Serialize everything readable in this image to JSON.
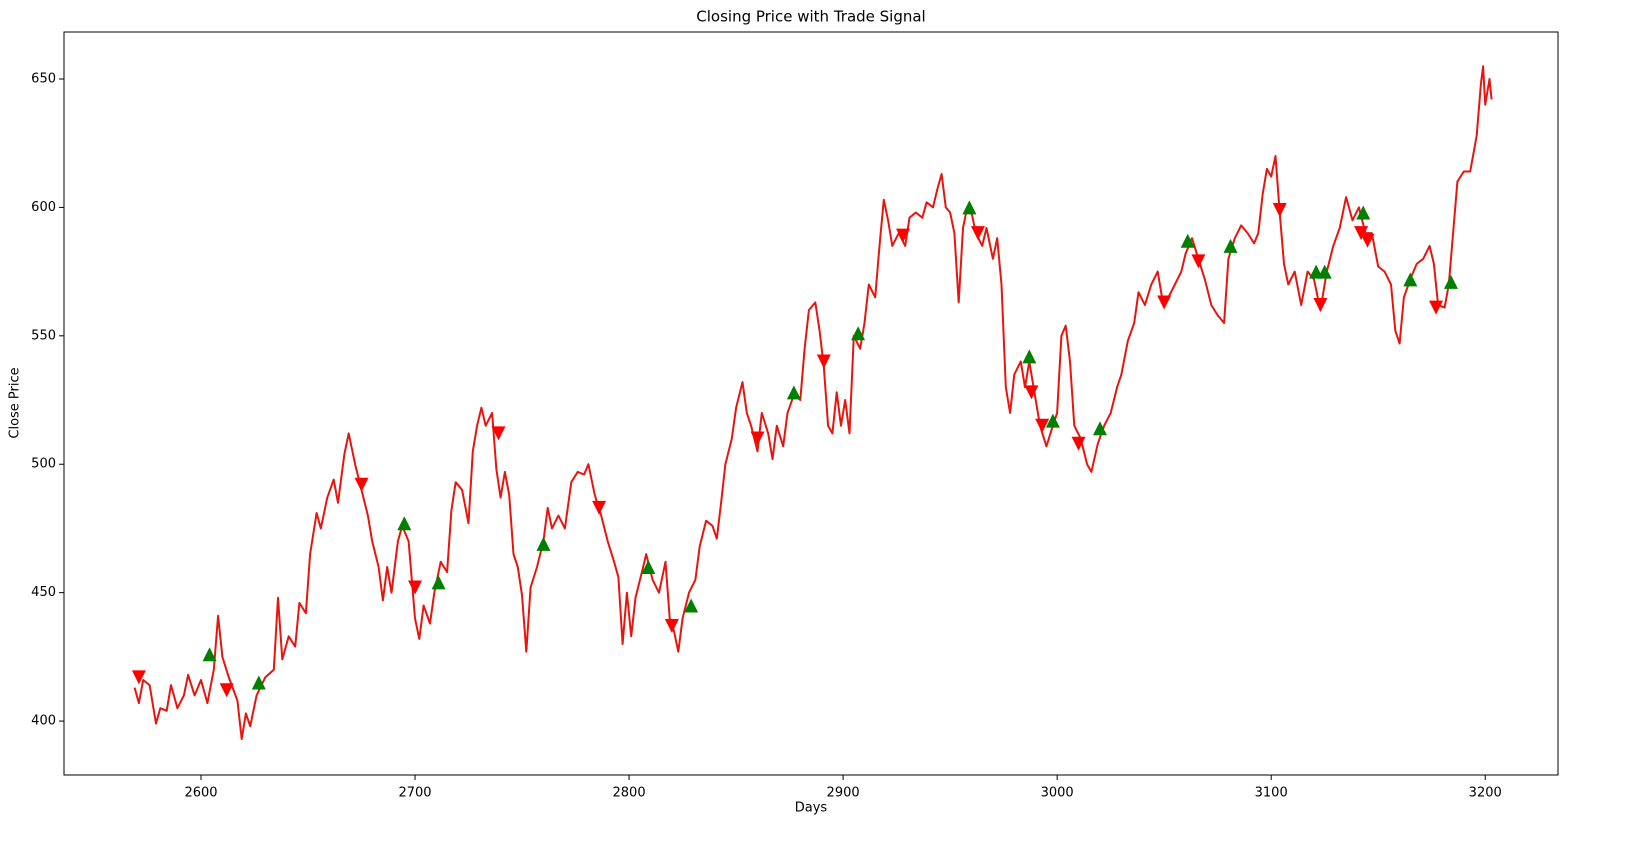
{
  "chart_data": {
    "type": "line",
    "title": "Closing Price with Trade Signal",
    "x_label": "Days",
    "y_label": "Close Price",
    "xlim": [
      2536,
      3234
    ],
    "xticks": [
      2600,
      2700,
      2800,
      2900,
      3000,
      3100,
      3200
    ],
    "ylim": [
      379,
      668.3
    ],
    "yticks": [
      400,
      450,
      500,
      550,
      600,
      650
    ],
    "grid": false,
    "series": [
      {
        "type": "line",
        "color": "#e8150f",
        "x": [
          2569,
          2571,
          2573,
          2576,
          2579,
          2581,
          2584,
          2586,
          2589,
          2592,
          2594,
          2597,
          2600,
          2603,
          2606,
          2608,
          2610,
          2613,
          2617,
          2619,
          2621,
          2623,
          2626,
          2630,
          2634,
          2636,
          2638,
          2641,
          2644,
          2646,
          2649,
          2651,
          2654,
          2656,
          2659,
          2662,
          2664,
          2667,
          2669,
          2672,
          2675,
          2678,
          2680,
          2683,
          2685,
          2687,
          2689,
          2692,
          2694,
          2697,
          2700,
          2702,
          2704,
          2707,
          2709,
          2712,
          2715,
          2717,
          2719,
          2722,
          2725,
          2727,
          2729,
          2731,
          2733,
          2736,
          2738,
          2740,
          2742,
          2744,
          2746,
          2748,
          2750,
          2752,
          2754,
          2757,
          2760,
          2762,
          2764,
          2767,
          2770,
          2773,
          2776,
          2779,
          2781,
          2784,
          2787,
          2790,
          2793,
          2795,
          2797,
          2799,
          2801,
          2803,
          2806,
          2808,
          2811,
          2814,
          2817,
          2819,
          2821,
          2823,
          2825,
          2828,
          2831,
          2833,
          2836,
          2839,
          2841,
          2843,
          2845,
          2848,
          2850,
          2853,
          2855,
          2857,
          2860,
          2862,
          2865,
          2867,
          2869,
          2872,
          2874,
          2877,
          2880,
          2882,
          2884,
          2887,
          2889,
          2891,
          2893,
          2895,
          2897,
          2899,
          2901,
          2903,
          2905,
          2908,
          2910,
          2912,
          2915,
          2917,
          2919,
          2921,
          2923,
          2926,
          2929,
          2931,
          2934,
          2937,
          2939,
          2942,
          2944,
          2946,
          2948,
          2950,
          2952,
          2954,
          2956,
          2958,
          2960,
          2962,
          2965,
          2967,
          2970,
          2972,
          2974,
          2976,
          2978,
          2980,
          2983,
          2985,
          2987,
          2990,
          2992,
          2995,
          2998,
          3000,
          3002,
          3004,
          3006,
          3008,
          3011,
          3014,
          3016,
          3019,
          3022,
          3025,
          3028,
          3030,
          3033,
          3036,
          3038,
          3041,
          3044,
          3047,
          3049,
          3052,
          3055,
          3058,
          3060,
          3063,
          3066,
          3069,
          3072,
          3075,
          3078,
          3080,
          3083,
          3086,
          3089,
          3092,
          3094,
          3096,
          3098,
          3100,
          3102,
          3104,
          3106,
          3108,
          3111,
          3114,
          3117,
          3120,
          3123,
          3126,
          3129,
          3132,
          3135,
          3138,
          3141,
          3144,
          3147,
          3150,
          3153,
          3156,
          3158,
          3160,
          3162,
          3165,
          3168,
          3171,
          3174,
          3176,
          3178,
          3181,
          3183,
          3185,
          3187,
          3190,
          3193,
          3196,
          3198,
          3199,
          3200,
          3202,
          3203
        ],
        "values": [
          413,
          407,
          416,
          414,
          399,
          405,
          404,
          414,
          405,
          410,
          418,
          410,
          416,
          407,
          420,
          441,
          425,
          417,
          408,
          393,
          403,
          398,
          410,
          417,
          420,
          448,
          424,
          433,
          429,
          446,
          442,
          465,
          481,
          475,
          487,
          494,
          485,
          504,
          512,
          500,
          490,
          480,
          470,
          460,
          447,
          460,
          450,
          470,
          476,
          470,
          440,
          432,
          445,
          438,
          450,
          462,
          458,
          482,
          493,
          490,
          477,
          505,
          515,
          522,
          515,
          520,
          498,
          487,
          497,
          488,
          465,
          460,
          449,
          427,
          452,
          460,
          470,
          483,
          475,
          480,
          475,
          493,
          497,
          496,
          500,
          488,
          480,
          470,
          462,
          456,
          430,
          450,
          433,
          448,
          458,
          465,
          455,
          450,
          462,
          440,
          435,
          427,
          440,
          450,
          455,
          468,
          478,
          476,
          471,
          485,
          500,
          510,
          522,
          532,
          520,
          515,
          505,
          520,
          512,
          502,
          515,
          507,
          520,
          527,
          525,
          545,
          560,
          563,
          552,
          538,
          515,
          512,
          528,
          515,
          525,
          512,
          550,
          545,
          555,
          570,
          565,
          585,
          603,
          595,
          585,
          590,
          585,
          596,
          598,
          596,
          602,
          600,
          607,
          613,
          600,
          598,
          590,
          563,
          592,
          600,
          598,
          590,
          585,
          592,
          580,
          588,
          570,
          530,
          520,
          535,
          540,
          530,
          540,
          525,
          515,
          507,
          515,
          520,
          550,
          554,
          540,
          515,
          510,
          500,
          497,
          508,
          515,
          520,
          530,
          535,
          548,
          555,
          567,
          562,
          570,
          575,
          565,
          565,
          570,
          575,
          582,
          588,
          580,
          572,
          562,
          558,
          555,
          580,
          588,
          593,
          590,
          586,
          590,
          605,
          615,
          612,
          620,
          598,
          578,
          570,
          575,
          562,
          575,
          572,
          560,
          575,
          585,
          592,
          604,
          595,
          600,
          590,
          590,
          577,
          575,
          570,
          552,
          547,
          565,
          572,
          578,
          580,
          585,
          578,
          562,
          561,
          570,
          590,
          610,
          614,
          614,
          628,
          648,
          655,
          640,
          650,
          642
        ]
      },
      {
        "type": "scatter",
        "marker": "^",
        "color": "green",
        "x": [
          2604,
          2627,
          2695,
          2711,
          2760,
          2809,
          2829,
          2877,
          2907,
          2959,
          2987,
          2998,
          3020,
          3061,
          3081,
          3121,
          3125,
          3143,
          3165,
          3184
        ],
        "values": [
          426,
          415,
          477,
          454,
          469,
          460,
          445,
          528,
          551,
          600,
          542,
          517,
          514,
          587,
          585,
          575,
          575,
          598,
          572,
          571
        ]
      },
      {
        "type": "scatter",
        "marker": "v",
        "color": "red",
        "x": [
          2571,
          2612,
          2675,
          2700,
          2739,
          2786,
          2820,
          2860,
          2891,
          2928,
          2963,
          2988,
          2993,
          3010,
          3050,
          3066,
          3104,
          3123,
          3142,
          3145,
          3177
        ],
        "values": [
          417,
          412,
          492,
          452,
          512,
          483,
          437,
          510,
          540,
          589,
          590,
          528,
          515,
          508,
          563,
          579,
          599,
          562,
          590,
          587,
          561
        ]
      }
    ]
  }
}
